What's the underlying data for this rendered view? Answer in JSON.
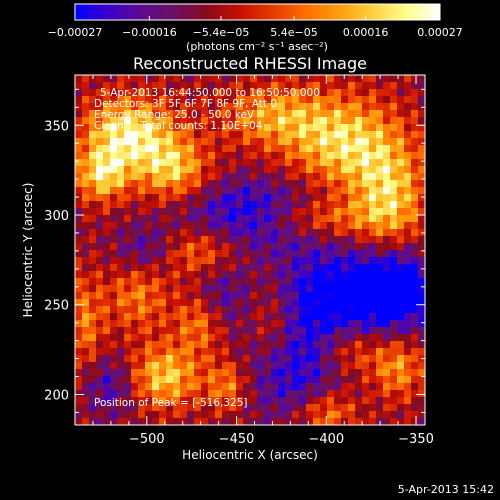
{
  "chart_data": {
    "type": "heatmap",
    "title": "Reconstructed RHESSI Image",
    "xlabel": "Heliocentric X (arcsec)",
    "ylabel": "Heliocentric Y (arcsec)",
    "xlim": [
      -540,
      -345
    ],
    "ylim": [
      183,
      378
    ],
    "x_ticks": [
      -500,
      -450,
      -400,
      -350
    ],
    "x_tick_labels": [
      "−500",
      "−450",
      "−400",
      "−350"
    ],
    "y_ticks": [
      200,
      250,
      300,
      350
    ],
    "y_tick_labels": [
      "200",
      "250",
      "300",
      "350"
    ],
    "colorbar": {
      "min": -0.00027,
      "max": 0.00027,
      "ticks": [
        -0.00027,
        -0.00016,
        -5.4e-05,
        5.4e-05,
        0.00016,
        0.00027
      ],
      "tick_labels": [
        "−0.00027",
        "−0.00016",
        "−5.4e−05",
        "5.4e−05",
        "0.00016",
        "0.00027"
      ],
      "units_label": "(photons cm⁻² s⁻¹ asec⁻²)",
      "colormap": [
        "#0000ff",
        "#3a00c8",
        "#5c0c92",
        "#6a1060",
        "#8a0a1a",
        "#c81000",
        "#e83c00",
        "#ff7000",
        "#ffa010",
        "#ffd240",
        "#ffff90",
        "#ffffff"
      ]
    },
    "annotations": [
      "5-Apr-2013 16:44:50.000 to 16:50:50.000",
      "Detectors: 3F 5F 6F 7F 8F 9F, Att 0",
      "Energy Range: 25.0 - 50.0 keV",
      "Clean     Total counts: 1.10E+04"
    ],
    "peak_label": "Position of Peak = [-516,325]",
    "peak": {
      "x": -516,
      "y": 325
    },
    "sources": [
      {
        "x": -510,
        "y": 345,
        "sx": 18,
        "sy": 14,
        "amp": 1.0
      },
      {
        "x": -485,
        "y": 325,
        "sx": 14,
        "sy": 12,
        "amp": 0.75
      },
      {
        "x": -525,
        "y": 322,
        "sx": 10,
        "sy": 10,
        "amp": 0.8
      },
      {
        "x": -430,
        "y": 355,
        "sx": 20,
        "sy": 12,
        "amp": 0.6
      },
      {
        "x": -390,
        "y": 340,
        "sx": 22,
        "sy": 18,
        "amp": 0.85
      },
      {
        "x": -365,
        "y": 310,
        "sx": 14,
        "sy": 20,
        "amp": 0.75
      },
      {
        "x": -405,
        "y": 298,
        "sx": 25,
        "sy": 8,
        "amp": 0.55
      },
      {
        "x": -470,
        "y": 280,
        "sx": 16,
        "sy": 10,
        "amp": 0.55
      },
      {
        "x": -505,
        "y": 255,
        "sx": 12,
        "sy": 14,
        "amp": 0.5
      },
      {
        "x": -470,
        "y": 240,
        "sx": 10,
        "sy": 12,
        "amp": 0.55
      },
      {
        "x": -490,
        "y": 210,
        "sx": 14,
        "sy": 12,
        "amp": 0.8
      },
      {
        "x": -455,
        "y": 205,
        "sx": 8,
        "sy": 10,
        "amp": 0.55
      },
      {
        "x": -430,
        "y": 240,
        "sx": 10,
        "sy": 18,
        "amp": 0.5
      },
      {
        "x": -385,
        "y": 225,
        "sx": 12,
        "sy": 10,
        "amp": 0.45
      },
      {
        "x": -360,
        "y": 215,
        "sx": 10,
        "sy": 12,
        "amp": 0.6
      },
      {
        "x": -400,
        "y": 190,
        "sx": 12,
        "sy": 8,
        "amp": 0.55
      },
      {
        "x": -535,
        "y": 240,
        "sx": 8,
        "sy": 18,
        "amp": 0.5
      }
    ],
    "negative_regions": [
      {
        "x": -440,
        "y": 300,
        "sx": 28,
        "sy": 14,
        "amp": 0.7
      },
      {
        "x": -390,
        "y": 255,
        "sx": 30,
        "sy": 18,
        "amp": 0.85
      },
      {
        "x": -420,
        "y": 215,
        "sx": 18,
        "sy": 20,
        "amp": 0.6
      },
      {
        "x": -360,
        "y": 260,
        "sx": 14,
        "sy": 14,
        "amp": 0.6
      },
      {
        "x": -500,
        "y": 280,
        "sx": 12,
        "sy": 10,
        "amp": 0.4
      },
      {
        "x": -520,
        "y": 205,
        "sx": 10,
        "sy": 12,
        "amp": 0.45
      },
      {
        "x": -460,
        "y": 255,
        "sx": 10,
        "sy": 14,
        "amp": 0.35
      }
    ],
    "grid": false
  },
  "footer": {
    "timestamp": "5-Apr-2013 15:42"
  }
}
